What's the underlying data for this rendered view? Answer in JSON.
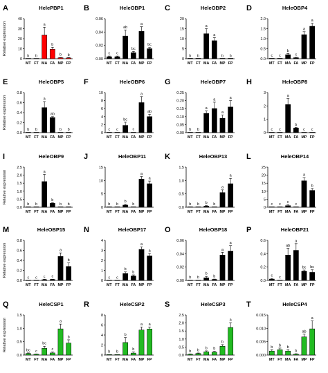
{
  "figure": {
    "categories": [
      "MT",
      "FT",
      "MA",
      "FA",
      "MP",
      "FP"
    ],
    "y_axis_label": "Relative expression"
  },
  "chart_data": [
    {
      "letter": "A",
      "type": "bar",
      "title": "HelePBP1",
      "categories": [
        "MT",
        "FT",
        "MA",
        "FA",
        "MP",
        "FP"
      ],
      "ylim": [
        0,
        40
      ],
      "yticks": [
        "0",
        "10",
        "20",
        "30",
        "40"
      ],
      "values": [
        0.1,
        0.1,
        23.5,
        9.5,
        1.0,
        0.8
      ],
      "errors": [
        0.05,
        0.05,
        8.0,
        2.0,
        0.3,
        0.3
      ],
      "sig": [
        "b",
        "b",
        "a",
        "b",
        "b",
        "b"
      ],
      "colors": [
        "#ffffff",
        "#ffffff",
        "#ff0000",
        "#ff0000",
        "#ff0000",
        "#ff0000"
      ]
    },
    {
      "letter": "B",
      "type": "bar",
      "title": "HeleOBP1",
      "categories": [
        "MT",
        "FT",
        "MA",
        "FA",
        "MP",
        "FP"
      ],
      "ylim": [
        0,
        0.06
      ],
      "yticks": [
        "0.00",
        "0.02",
        "0.04",
        "0.06"
      ],
      "values": [
        0.003,
        0.003,
        0.034,
        0.009,
        0.041,
        0.015
      ],
      "errors": [
        0.001,
        0.001,
        0.009,
        0.002,
        0.007,
        0.002
      ],
      "sig": [
        "c",
        "c",
        "ab",
        "bc",
        "a",
        "bc"
      ],
      "colors": [
        "#000000",
        "#000000",
        "#000000",
        "#000000",
        "#000000",
        "#000000"
      ]
    },
    {
      "letter": "C",
      "type": "bar",
      "title": "HeleOBP2",
      "categories": [
        "MT",
        "FT",
        "MA",
        "FA",
        "MP",
        "FP"
      ],
      "ylim": [
        0,
        20
      ],
      "yticks": [
        "0",
        "5",
        "10",
        "15",
        "20"
      ],
      "values": [
        0.05,
        0.05,
        12.5,
        9.0,
        0.05,
        0.05
      ],
      "errors": [
        0.02,
        0.02,
        2.5,
        1.5,
        0.02,
        0.02
      ],
      "sig": [
        "b",
        "b",
        "a",
        "a",
        "b",
        "b"
      ],
      "colors": [
        "#000000",
        "#000000",
        "#000000",
        "#000000",
        "#000000",
        "#000000"
      ]
    },
    {
      "letter": "D",
      "type": "bar",
      "title": "HeleOBP4",
      "categories": [
        "MT",
        "FT",
        "MA",
        "FA",
        "MP",
        "FP"
      ],
      "ylim": [
        0,
        2.0
      ],
      "yticks": [
        "0.0",
        "0.5",
        "1.0",
        "1.5",
        "2.0"
      ],
      "values": [
        0.01,
        0.01,
        0.2,
        0.05,
        1.2,
        1.62
      ],
      "errors": [
        0.005,
        0.005,
        0.06,
        0.02,
        0.15,
        0.15
      ],
      "sig": [
        "c",
        "c",
        "b",
        "c",
        "a",
        "a"
      ],
      "colors": [
        "#000000",
        "#000000",
        "#000000",
        "#000000",
        "#000000",
        "#000000"
      ]
    },
    {
      "letter": "E",
      "type": "bar",
      "title": "HeleOBP5",
      "categories": [
        "MT",
        "FT",
        "MA",
        "FA",
        "MP",
        "FP"
      ],
      "ylim": [
        0,
        0.8
      ],
      "yticks": [
        "0.0",
        "0.2",
        "0.4",
        "0.6",
        "0.8"
      ],
      "values": [
        0.005,
        0.005,
        0.5,
        0.3,
        0.005,
        0.005
      ],
      "errors": [
        0.002,
        0.002,
        0.12,
        0.02,
        0.002,
        0.002
      ],
      "sig": [
        "b",
        "b",
        "a",
        "ab",
        "b",
        "b"
      ],
      "colors": [
        "#000000",
        "#000000",
        "#000000",
        "#000000",
        "#000000",
        "#000000"
      ]
    },
    {
      "letter": "F",
      "type": "bar",
      "title": "HeleOBP6",
      "categories": [
        "MT",
        "FT",
        "MA",
        "FA",
        "MP",
        "FP"
      ],
      "ylim": [
        0,
        10
      ],
      "yticks": [
        "0",
        "2",
        "4",
        "6",
        "8",
        "10"
      ],
      "values": [
        0.05,
        0.05,
        1.8,
        0.1,
        7.5,
        4.0
      ],
      "errors": [
        0.02,
        0.02,
        0.8,
        0.05,
        1.5,
        0.6
      ],
      "sig": [
        "c",
        "c",
        "bc",
        "c",
        "a",
        "ab"
      ],
      "colors": [
        "#000000",
        "#000000",
        "#000000",
        "#000000",
        "#000000",
        "#000000"
      ]
    },
    {
      "letter": "G",
      "type": "bar",
      "title": "HeleOBP7",
      "categories": [
        "MT",
        "FT",
        "MA",
        "FA",
        "MP",
        "FP"
      ],
      "ylim": [
        0,
        0.25
      ],
      "yticks": [
        "0.00",
        "0.05",
        "0.10",
        "0.15",
        "0.20",
        "0.25"
      ],
      "values": [
        0.002,
        0.002,
        0.12,
        0.15,
        0.09,
        0.16
      ],
      "errors": [
        0.001,
        0.001,
        0.015,
        0.04,
        0.02,
        0.04
      ],
      "sig": [
        "b",
        "b",
        "a",
        "a",
        "a",
        "a"
      ],
      "colors": [
        "#000000",
        "#000000",
        "#000000",
        "#000000",
        "#000000",
        "#000000"
      ]
    },
    {
      "letter": "H",
      "type": "bar",
      "title": "HeleOBP8",
      "categories": [
        "MT",
        "FT",
        "MA",
        "FA",
        "MP",
        "FP"
      ],
      "ylim": [
        0,
        3
      ],
      "yticks": [
        "0",
        "1",
        "2",
        "3"
      ],
      "values": [
        0.01,
        0.01,
        2.1,
        0.35,
        0.01,
        0.01
      ],
      "errors": [
        0.005,
        0.005,
        0.45,
        0.05,
        0.005,
        0.005
      ],
      "sig": [
        "c",
        "c",
        "a",
        "b",
        "c",
        "c"
      ],
      "colors": [
        "#000000",
        "#000000",
        "#000000",
        "#000000",
        "#000000",
        "#000000"
      ]
    },
    {
      "letter": "I",
      "type": "bar",
      "title": "HeleOBP9",
      "categories": [
        "MT",
        "FT",
        "MA",
        "FA",
        "MP",
        "FP"
      ],
      "ylim": [
        0,
        2.5
      ],
      "yticks": [
        "0.0",
        "0.5",
        "1.0",
        "1.5",
        "2.0",
        "2.5"
      ],
      "values": [
        0.01,
        0.01,
        1.6,
        0.25,
        0.01,
        0.01
      ],
      "errors": [
        0.005,
        0.005,
        0.45,
        0.03,
        0.005,
        0.005
      ],
      "sig": [
        "b",
        "b",
        "a",
        "b",
        "b",
        "b"
      ],
      "colors": [
        "#000000",
        "#000000",
        "#000000",
        "#000000",
        "#000000",
        "#000000"
      ]
    },
    {
      "letter": "J",
      "type": "bar",
      "title": "HeleOBP11",
      "categories": [
        "MT",
        "FT",
        "MA",
        "FA",
        "MP",
        "FP"
      ],
      "ylim": [
        0,
        15
      ],
      "yticks": [
        "0",
        "5",
        "10",
        "15"
      ],
      "values": [
        0.05,
        0.05,
        0.8,
        0.1,
        10.5,
        8.8
      ],
      "errors": [
        0.02,
        0.02,
        0.3,
        0.05,
        1.0,
        1.0
      ],
      "sig": [
        "b",
        "b",
        "b",
        "b",
        "a",
        "a"
      ],
      "colors": [
        "#000000",
        "#000000",
        "#000000",
        "#000000",
        "#000000",
        "#000000"
      ]
    },
    {
      "letter": "K",
      "type": "bar",
      "title": "HeleOBP13",
      "categories": [
        "MT",
        "FT",
        "MA",
        "FA",
        "MP",
        "FP"
      ],
      "ylim": [
        0,
        1.5
      ],
      "yticks": [
        "0.0",
        "0.5",
        "1.0",
        "1.5"
      ],
      "values": [
        0.005,
        0.005,
        0.04,
        0.005,
        0.55,
        0.88
      ],
      "errors": [
        0.002,
        0.002,
        0.02,
        0.002,
        0.1,
        0.2
      ],
      "sig": [
        "b",
        "b",
        "b",
        "b",
        "a",
        "a"
      ],
      "colors": [
        "#000000",
        "#000000",
        "#000000",
        "#000000",
        "#000000",
        "#000000"
      ]
    },
    {
      "letter": "L",
      "type": "bar",
      "title": "HeleOBP14",
      "categories": [
        "MT",
        "FT",
        "MA",
        "FA",
        "MP",
        "FP"
      ],
      "ylim": [
        0,
        25
      ],
      "yticks": [
        "0",
        "5",
        "10",
        "15",
        "20",
        "25"
      ],
      "values": [
        0.1,
        0.1,
        1.0,
        0.1,
        16.5,
        10.5
      ],
      "errors": [
        0.05,
        0.05,
        0.5,
        0.05,
        2.0,
        1.2
      ],
      "sig": [
        "c",
        "c",
        "c",
        "c",
        "a",
        "b"
      ],
      "colors": [
        "#000000",
        "#000000",
        "#000000",
        "#000000",
        "#000000",
        "#000000"
      ]
    },
    {
      "letter": "M",
      "type": "bar",
      "title": "HeleOBP15",
      "categories": [
        "MT",
        "FT",
        "MA",
        "FA",
        "MP",
        "FP"
      ],
      "ylim": [
        0,
        0.8
      ],
      "yticks": [
        "0.0",
        "0.2",
        "0.4",
        "0.6",
        "0.8"
      ],
      "values": [
        0.002,
        0.002,
        0.015,
        0.02,
        0.48,
        0.28
      ],
      "errors": [
        0.001,
        0.001,
        0.008,
        0.005,
        0.07,
        0.07
      ],
      "sig": [
        "c",
        "c",
        "c",
        "c",
        "a",
        "b"
      ],
      "colors": [
        "#000000",
        "#000000",
        "#000000",
        "#000000",
        "#000000",
        "#000000"
      ]
    },
    {
      "letter": "N",
      "type": "bar",
      "title": "HeleOBP17",
      "categories": [
        "MT",
        "FT",
        "MA",
        "FA",
        "MP",
        "FP"
      ],
      "ylim": [
        0,
        4
      ],
      "yticks": [
        "0",
        "1",
        "2",
        "3",
        "4"
      ],
      "values": [
        0.01,
        0.01,
        0.7,
        0.45,
        3.1,
        2.45
      ],
      "errors": [
        0.005,
        0.005,
        0.15,
        0.1,
        0.25,
        0.25
      ],
      "sig": [
        "c",
        "c",
        "b",
        "b",
        "a",
        "a"
      ],
      "colors": [
        "#000000",
        "#000000",
        "#000000",
        "#000000",
        "#000000",
        "#000000"
      ]
    },
    {
      "letter": "O",
      "type": "bar",
      "title": "HeleOBP18",
      "categories": [
        "MT",
        "FT",
        "MA",
        "FA",
        "MP",
        "FP"
      ],
      "ylim": [
        0,
        0.06
      ],
      "yticks": [
        "0.00",
        "0.02",
        "0.04",
        "0.06"
      ],
      "values": [
        0.0003,
        0.0003,
        0.004,
        0.0015,
        0.038,
        0.044
      ],
      "errors": [
        0.0002,
        0.0002,
        0.002,
        0.0005,
        0.004,
        0.008
      ],
      "sig": [
        "b",
        "b",
        "b",
        "b",
        "a",
        "a"
      ],
      "colors": [
        "#000000",
        "#000000",
        "#000000",
        "#000000",
        "#000000",
        "#000000"
      ]
    },
    {
      "letter": "P",
      "type": "bar",
      "title": "HeleOBP21",
      "categories": [
        "MT",
        "FT",
        "MA",
        "FA",
        "MP",
        "FP"
      ],
      "ylim": [
        0,
        0.6
      ],
      "yticks": [
        "0.0",
        "0.2",
        "0.4",
        "0.6"
      ],
      "values": [
        0.02,
        0.002,
        0.38,
        0.45,
        0.14,
        0.12
      ],
      "errors": [
        0.01,
        0.001,
        0.1,
        0.1,
        0.015,
        0.04
      ],
      "sig": [
        "c",
        "c",
        "ab",
        "a",
        "bc",
        "bc"
      ],
      "colors": [
        "#000000",
        "#000000",
        "#000000",
        "#000000",
        "#000000",
        "#000000"
      ]
    },
    {
      "letter": "Q",
      "type": "bar",
      "title": "HeleCSP1",
      "categories": [
        "MT",
        "FT",
        "MA",
        "FA",
        "MP",
        "FP"
      ],
      "ylim": [
        0,
        1.5
      ],
      "yticks": [
        "0.0",
        "0.5",
        "1.0",
        "1.5"
      ],
      "values": [
        0.06,
        0.03,
        0.25,
        0.08,
        0.98,
        0.45
      ],
      "errors": [
        0.02,
        0.01,
        0.08,
        0.03,
        0.18,
        0.12
      ],
      "sig": [
        "bc",
        "c",
        "bc",
        "c",
        "a",
        "b"
      ],
      "colors": [
        "#22bb22",
        "#22bb22",
        "#22bb22",
        "#22bb22",
        "#22bb22",
        "#22bb22"
      ]
    },
    {
      "letter": "R",
      "type": "bar",
      "title": "HeleCSP2",
      "categories": [
        "MT",
        "FT",
        "MA",
        "FA",
        "MP",
        "FP"
      ],
      "ylim": [
        0,
        8
      ],
      "yticks": [
        "0",
        "2",
        "4",
        "6",
        "8"
      ],
      "values": [
        0.1,
        0.1,
        2.5,
        0.4,
        5.0,
        5.2
      ],
      "errors": [
        0.05,
        0.05,
        1.0,
        0.2,
        0.6,
        0.4
      ],
      "sig": [
        "b",
        "b",
        "b",
        "b",
        "a",
        "a"
      ],
      "colors": [
        "#22bb22",
        "#22bb22",
        "#22bb22",
        "#22bb22",
        "#22bb22",
        "#22bb22"
      ]
    },
    {
      "letter": "S",
      "type": "bar",
      "title": "HeleCSP3",
      "categories": [
        "MT",
        "FT",
        "MA",
        "FA",
        "MP",
        "FP"
      ],
      "ylim": [
        0,
        2.5
      ],
      "yticks": [
        "0.0",
        "0.5",
        "1.0",
        "1.5",
        "2.0",
        "2.5"
      ],
      "values": [
        0.05,
        0.1,
        0.2,
        0.18,
        0.55,
        1.72
      ],
      "errors": [
        0.02,
        0.03,
        0.06,
        0.05,
        0.1,
        0.3
      ],
      "sig": [
        "b",
        "b",
        "b",
        "b",
        "b",
        "a"
      ],
      "colors": [
        "#22bb22",
        "#22bb22",
        "#22bb22",
        "#22bb22",
        "#22bb22",
        "#22bb22"
      ]
    },
    {
      "letter": "T",
      "type": "bar",
      "title": "HeleCSP4",
      "categories": [
        "MT",
        "FT",
        "MA",
        "FA",
        "MP",
        "FP"
      ],
      "ylim": [
        0,
        0.015
      ],
      "yticks": [
        "0.000",
        "0.005",
        "0.010",
        "0.015"
      ],
      "values": [
        0.0015,
        0.002,
        0.0015,
        0.0003,
        0.0068,
        0.0098
      ],
      "errors": [
        0.0005,
        0.0006,
        0.0005,
        0.0002,
        0.001,
        0.003
      ],
      "sig": [
        "b",
        "b",
        "b",
        "b",
        "ab",
        "a"
      ],
      "colors": [
        "#22bb22",
        "#22bb22",
        "#22bb22",
        "#22bb22",
        "#22bb22",
        "#22bb22"
      ]
    }
  ]
}
